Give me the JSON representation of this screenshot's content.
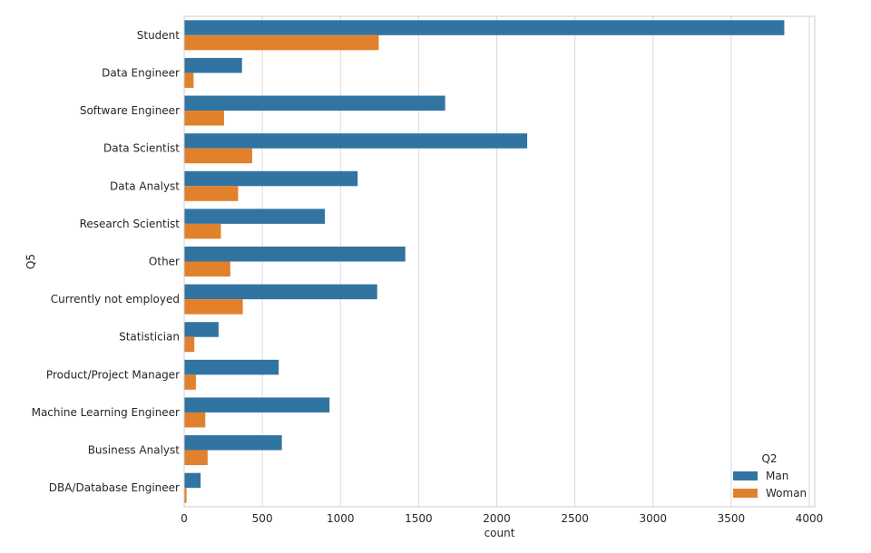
{
  "chart_data": {
    "type": "bar",
    "orientation": "horizontal",
    "title": "",
    "xlabel": "count",
    "ylabel": "Q5",
    "xlim": [
      0,
      4000
    ],
    "xticks": [
      0,
      500,
      1000,
      1500,
      2000,
      2500,
      3000,
      3500,
      4000
    ],
    "grid": "vertical",
    "legend_title": "Q2",
    "legend_position": "bottom-right",
    "categories": [
      "Student",
      "Data Engineer",
      "Software Engineer",
      "Data Scientist",
      "Data Analyst",
      "Research Scientist",
      "Other",
      "Currently not employed",
      "Statistician",
      "Product/Project Manager",
      "Machine Learning Engineer",
      "Business Analyst",
      "DBA/Database Engineer"
    ],
    "series": [
      {
        "name": "Man",
        "color": "#3274a1",
        "values": [
          3840,
          370,
          1670,
          2195,
          1110,
          900,
          1415,
          1235,
          220,
          605,
          930,
          625,
          105
        ]
      },
      {
        "name": "Woman",
        "color": "#e1812c",
        "values": [
          1245,
          60,
          255,
          435,
          345,
          235,
          295,
          375,
          65,
          75,
          135,
          150,
          15
        ]
      }
    ]
  }
}
